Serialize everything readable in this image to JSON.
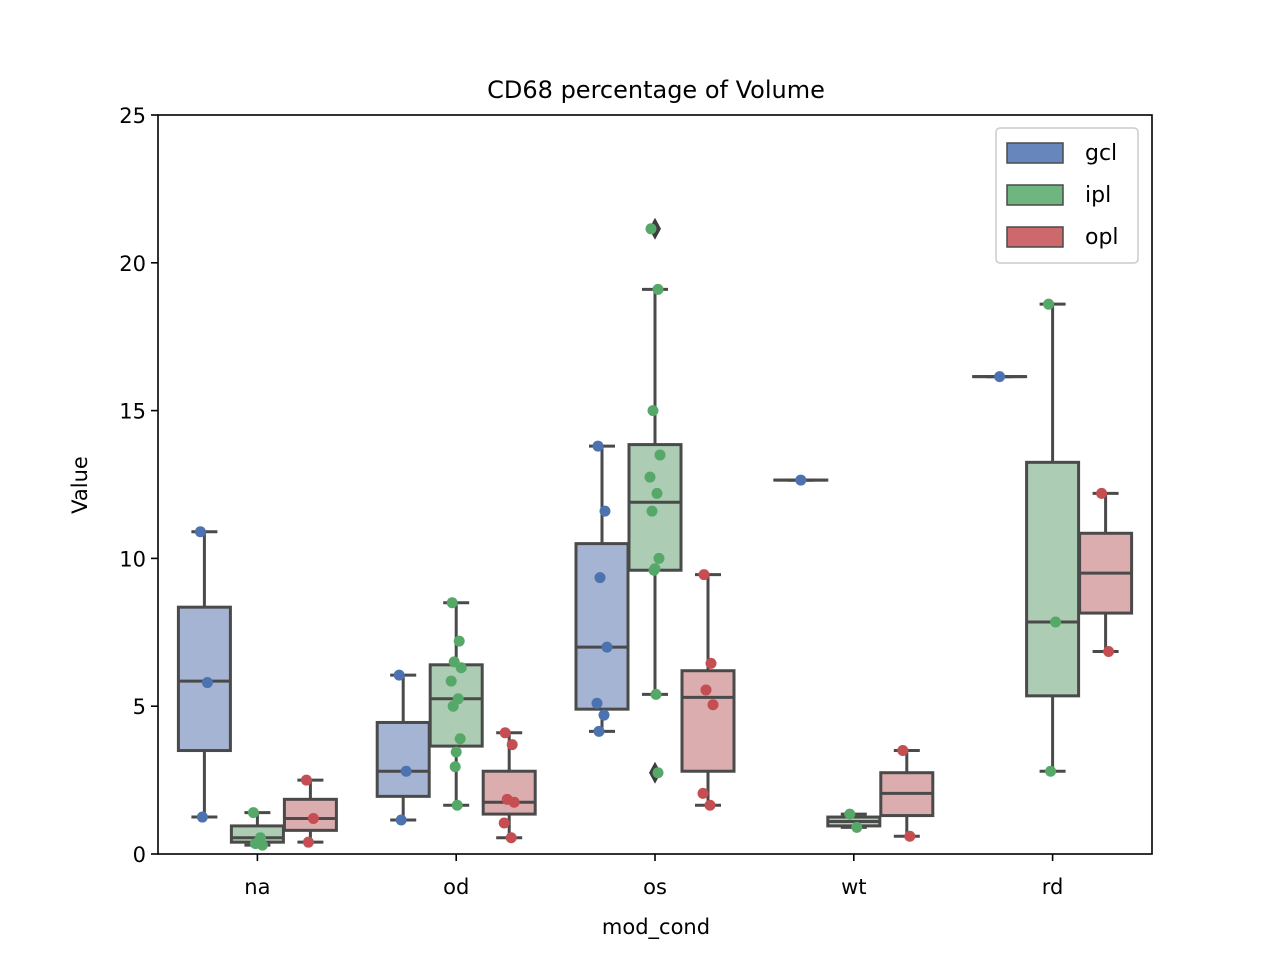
{
  "chart_data": {
    "type": "box",
    "title": "CD68 percentage of Volume",
    "xlabel": "mod_cond",
    "ylabel": "Value",
    "ylim": [
      0,
      25
    ],
    "yticks": [
      0,
      5,
      10,
      15,
      20,
      25
    ],
    "categories": [
      "na",
      "od",
      "os",
      "wt",
      "rd"
    ],
    "legend_position": "top-right",
    "series": [
      {
        "name": "gcl",
        "color": "#4c72b0",
        "box_color": "#a5b4d3",
        "boxes": [
          {
            "category": "na",
            "q1": 3.5,
            "median": 5.85,
            "q3": 8.35,
            "whisker_low": 1.25,
            "whisker_high": 10.9,
            "outliers": [],
            "points": [
              10.9,
              5.8,
              1.25
            ]
          },
          {
            "category": "od",
            "q1": 1.95,
            "median": 2.8,
            "q3": 4.45,
            "whisker_low": 1.15,
            "whisker_high": 6.05,
            "outliers": [],
            "points": [
              6.05,
              2.8,
              1.15
            ]
          },
          {
            "category": "os",
            "q1": 4.9,
            "median": 7.0,
            "q3": 10.5,
            "whisker_low": 4.15,
            "whisker_high": 13.8,
            "outliers": [],
            "points": [
              13.8,
              11.6,
              9.35,
              7.0,
              5.1,
              4.7,
              4.15
            ]
          },
          {
            "category": "wt",
            "q1": 12.65,
            "median": 12.65,
            "q3": 12.65,
            "whisker_low": 12.65,
            "whisker_high": 12.65,
            "outliers": [],
            "points": [
              12.65
            ]
          },
          {
            "category": "rd",
            "q1": 16.15,
            "median": 16.15,
            "q3": 16.15,
            "whisker_low": 16.15,
            "whisker_high": 16.15,
            "outliers": [],
            "points": [
              16.15
            ]
          }
        ]
      },
      {
        "name": "ipl",
        "color": "#55a868",
        "box_color": "#acccb3",
        "boxes": [
          {
            "category": "na",
            "q1": 0.4,
            "median": 0.55,
            "q3": 0.95,
            "whisker_low": 0.3,
            "whisker_high": 1.4,
            "outliers": [],
            "points": [
              1.4,
              0.55,
              0.35,
              0.3
            ]
          },
          {
            "category": "od",
            "q1": 3.65,
            "median": 5.25,
            "q3": 6.4,
            "whisker_low": 1.65,
            "whisker_high": 8.5,
            "outliers": [],
            "points": [
              8.5,
              7.2,
              6.5,
              6.3,
              5.85,
              5.25,
              5.0,
              3.9,
              3.45,
              2.95,
              1.65
            ]
          },
          {
            "category": "os",
            "q1": 9.6,
            "median": 11.9,
            "q3": 13.85,
            "whisker_low": 5.4,
            "whisker_high": 19.1,
            "outliers": [
              21.15,
              2.75
            ],
            "points": [
              21.15,
              19.1,
              15.0,
              13.5,
              12.75,
              12.2,
              11.6,
              10.0,
              9.65,
              9.6,
              5.4,
              2.75
            ]
          },
          {
            "category": "wt",
            "q1": 0.95,
            "median": 1.1,
            "q3": 1.25,
            "whisker_low": 0.9,
            "whisker_high": 1.35,
            "outliers": [],
            "points": [
              1.35,
              0.9
            ]
          },
          {
            "category": "rd",
            "q1": 5.35,
            "median": 7.85,
            "q3": 13.25,
            "whisker_low": 2.8,
            "whisker_high": 18.6,
            "outliers": [],
            "points": [
              18.6,
              7.85,
              2.8
            ]
          }
        ]
      },
      {
        "name": "opl",
        "color": "#c44e52",
        "box_color": "#dbadae",
        "boxes": [
          {
            "category": "na",
            "q1": 0.8,
            "median": 1.2,
            "q3": 1.85,
            "whisker_low": 0.4,
            "whisker_high": 2.5,
            "outliers": [],
            "points": [
              2.5,
              1.2,
              0.4
            ]
          },
          {
            "category": "od",
            "q1": 1.35,
            "median": 1.75,
            "q3": 2.8,
            "whisker_low": 0.55,
            "whisker_high": 4.1,
            "outliers": [],
            "points": [
              4.1,
              3.7,
              1.85,
              1.75,
              1.05,
              0.55
            ]
          },
          {
            "category": "os",
            "q1": 2.8,
            "median": 5.3,
            "q3": 6.2,
            "whisker_low": 1.65,
            "whisker_high": 9.45,
            "outliers": [],
            "points": [
              9.45,
              6.45,
              5.55,
              5.05,
              2.05,
              1.65
            ]
          },
          {
            "category": "wt",
            "q1": 1.3,
            "median": 2.05,
            "q3": 2.75,
            "whisker_low": 0.6,
            "whisker_high": 3.5,
            "outliers": [],
            "points": [
              3.5,
              0.6
            ]
          },
          {
            "category": "rd",
            "q1": 8.15,
            "median": 9.5,
            "q3": 10.85,
            "whisker_low": 6.85,
            "whisker_high": 12.2,
            "outliers": [],
            "points": [
              12.2,
              6.85
            ]
          }
        ]
      }
    ]
  }
}
